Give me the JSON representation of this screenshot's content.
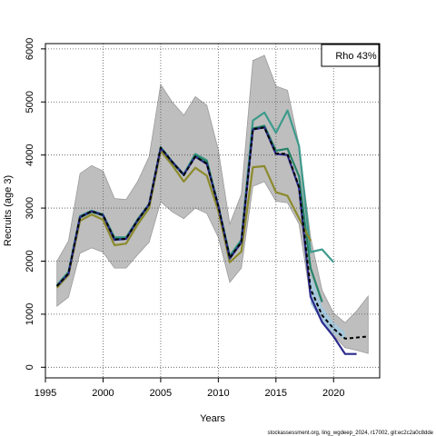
{
  "chart_data": {
    "type": "line",
    "xlabel": "Years",
    "ylabel": "Recruits (age 3)",
    "xlim": [
      1995,
      2024
    ],
    "ylim": [
      -200,
      6100
    ],
    "xticks": [
      1995,
      2000,
      2005,
      2010,
      2015,
      2020
    ],
    "yticks": [
      0,
      1000,
      2000,
      3000,
      4000,
      5000,
      6000
    ],
    "grid": true,
    "legend_placement": "top-right",
    "legend_text": "Rho 43%",
    "footer_text": "stockassessment.org, ling_wgdeep_2024, r17002, git:ec2c2a0c8dde",
    "band": {
      "x": [
        1996,
        1997,
        1998,
        1999,
        2000,
        2001,
        2002,
        2003,
        2004,
        2005,
        2006,
        2007,
        2008,
        2009,
        2010,
        2011,
        2012,
        2013,
        2014,
        2015,
        2016,
        2017,
        2018,
        2019,
        2020,
        2021,
        2022,
        2023
      ],
      "lower": [
        1150,
        1320,
        2150,
        2250,
        2170,
        1870,
        1870,
        2120,
        2360,
        3120,
        2930,
        2800,
        3000,
        2900,
        2450,
        1600,
        1870,
        3410,
        3500,
        3130,
        3100,
        2700,
        1300,
        900,
        600,
        370,
        320,
        260
      ],
      "upper": [
        2000,
        2380,
        3650,
        3800,
        3700,
        3180,
        3160,
        3500,
        3970,
        5330,
        5000,
        4750,
        5100,
        4940,
        4100,
        2700,
        3260,
        5780,
        5880,
        5300,
        5220,
        4200,
        2450,
        1450,
        1020,
        840,
        1060,
        1340
      ]
    },
    "ci_band": {
      "x": [
        2018,
        2019,
        2020,
        2021
      ],
      "lower": [
        1200,
        850,
        640,
        520
      ],
      "upper": [
        1750,
        1150,
        840,
        660
      ]
    },
    "series": [
      {
        "color": "#3d9b8c",
        "x": [
          1996,
          1997,
          1998,
          1999,
          2000,
          2001,
          2002,
          2003,
          2004,
          2005,
          2006,
          2007,
          2008,
          2009,
          2010,
          2011,
          2012,
          2013,
          2014,
          2015,
          2016,
          2017,
          2018,
          2019,
          2020
        ],
        "values": [
          1550,
          1800,
          2850,
          2950,
          2880,
          2450,
          2450,
          2790,
          3080,
          4150,
          3880,
          3640,
          4020,
          3900,
          3050,
          2100,
          2400,
          4650,
          4800,
          4420,
          4840,
          4170,
          2170,
          2220,
          1980
        ]
      },
      {
        "color": "#26836a",
        "x": [
          1996,
          1997,
          1998,
          1999,
          2000,
          2001,
          2002,
          2003,
          2004,
          2005,
          2006,
          2007,
          2008,
          2009,
          2010,
          2011,
          2012,
          2013,
          2014,
          2015,
          2016,
          2017,
          2018,
          2019
        ],
        "values": [
          1520,
          1770,
          2820,
          2930,
          2860,
          2420,
          2430,
          2760,
          3060,
          4120,
          3860,
          3620,
          4000,
          3880,
          3020,
          2080,
          2380,
          4500,
          4550,
          4080,
          4120,
          3600,
          1870,
          1230
        ]
      },
      {
        "color": "#8c8a2c",
        "x": [
          1996,
          1997,
          1998,
          1999,
          2000,
          2001,
          2002,
          2003,
          2004,
          2005,
          2006,
          2007,
          2008,
          2009,
          2010,
          2011,
          2012,
          2013,
          2014,
          2015,
          2016,
          2017,
          2018
        ],
        "values": [
          1500,
          1740,
          2760,
          2880,
          2780,
          2300,
          2330,
          2690,
          3000,
          4080,
          3810,
          3500,
          3760,
          3610,
          2950,
          1980,
          2180,
          3770,
          3790,
          3300,
          3230,
          2810,
          2380
        ]
      },
      {
        "color": "#2a2a8c",
        "x": [
          1996,
          1997,
          1998,
          1999,
          2000,
          2001,
          2002,
          2003,
          2004,
          2005,
          2006,
          2007,
          2008,
          2009,
          2010,
          2011,
          2012,
          2013,
          2014,
          2015,
          2016,
          2017,
          2018,
          2019,
          2020,
          2021,
          2022
        ],
        "values": [
          1530,
          1760,
          2830,
          2940,
          2870,
          2400,
          2420,
          2770,
          3070,
          4130,
          3870,
          3630,
          3970,
          3830,
          3040,
          2050,
          2350,
          4480,
          4520,
          4020,
          4000,
          3380,
          1330,
          850,
          580,
          250,
          250
        ]
      },
      {
        "color": "#000000",
        "dashed": true,
        "x": [
          1996,
          1997,
          1998,
          1999,
          2000,
          2001,
          2002,
          2003,
          2004,
          2005,
          2006,
          2007,
          2008,
          2009,
          2010,
          2011,
          2012,
          2013,
          2014,
          2015,
          2016,
          2017,
          2018,
          2019,
          2020,
          2021,
          2022,
          2023
        ],
        "values": [
          1530,
          1770,
          2830,
          2940,
          2870,
          2410,
          2420,
          2770,
          3070,
          4140,
          3870,
          3620,
          3970,
          3840,
          3040,
          2060,
          2360,
          4490,
          4520,
          4030,
          4020,
          3400,
          1480,
          980,
          730,
          540,
          560,
          580
        ]
      }
    ]
  }
}
